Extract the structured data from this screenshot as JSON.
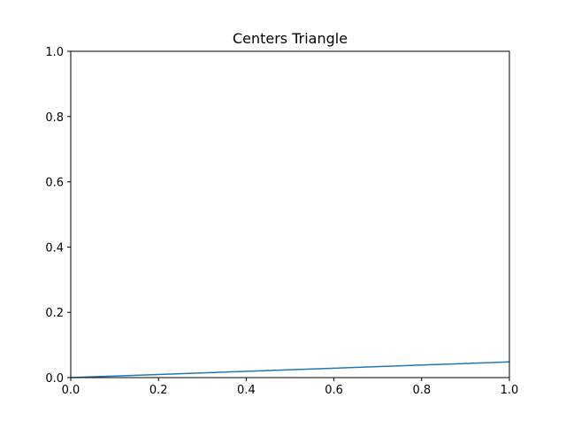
{
  "chart_data": {
    "type": "line",
    "title": "Centers Triangle",
    "xlabel": "",
    "ylabel": "",
    "xlim": [
      0.0,
      1.0
    ],
    "ylim": [
      0.0,
      1.0
    ],
    "x_ticks": [
      "0.0",
      "0.2",
      "0.4",
      "0.6",
      "0.8",
      "1.0"
    ],
    "y_ticks": [
      "0.0",
      "0.2",
      "0.4",
      "0.6",
      "0.8",
      "1.0"
    ],
    "grid": false,
    "legend": "none",
    "series": [
      {
        "color": "#1f77b4",
        "x": [
          0.0,
          1.0,
          0.0
        ],
        "y": [
          0.0,
          0.048,
          0.0
        ]
      }
    ]
  }
}
